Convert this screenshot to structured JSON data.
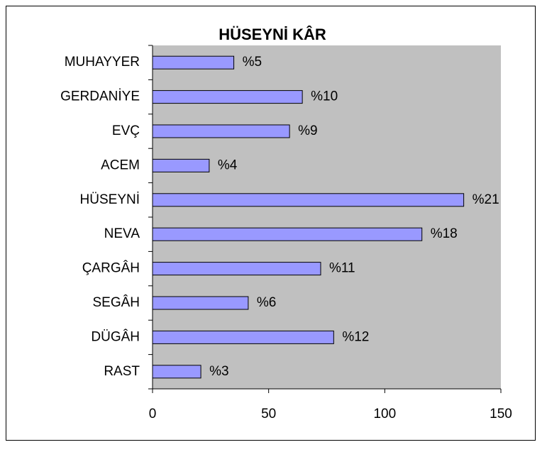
{
  "chart_data": {
    "type": "bar",
    "orientation": "horizontal",
    "title": "HÜSEYNİ KÂR",
    "categories": [
      "MUHAYYER",
      "GERDANİYE",
      "EVÇ",
      "ACEM",
      "HÜSEYNİ",
      "NEVA",
      "ÇARGÂH",
      "SEGÂH",
      "DÜGÂH",
      "RAST"
    ],
    "values": [
      35,
      64.5,
      59,
      24.4,
      134,
      116,
      72.4,
      41.2,
      78,
      20.8
    ],
    "annotations": [
      "%5",
      "%10",
      "%9",
      "%4",
      "%21",
      "%18",
      "%11",
      "%6",
      "%12",
      "%3"
    ],
    "color": "#9999ff",
    "xlim": [
      0,
      150
    ],
    "xticks": [
      0,
      50,
      100,
      150
    ],
    "grid": false
  }
}
